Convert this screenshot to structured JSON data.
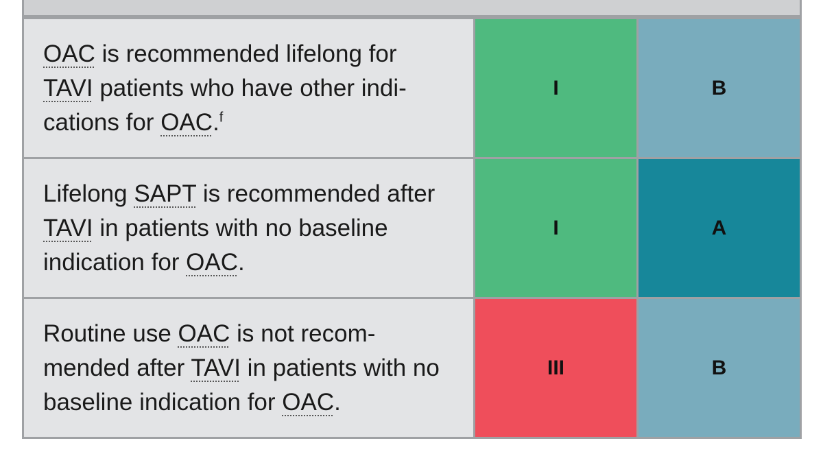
{
  "rows": [
    {
      "parts": [
        {
          "t": "OAC",
          "abbr": true
        },
        {
          "t": " is recommended lifelong for "
        },
        {
          "t": "TAVI",
          "abbr": true
        },
        {
          "t": " patients who have other indi-cations for "
        },
        {
          "t": "OAC",
          "abbr": true
        },
        {
          "t": "."
        },
        {
          "t": "f",
          "sup": true
        }
      ],
      "class_label": "I",
      "class_color": "#4fba7f",
      "level_label": "B",
      "level_color": "#79acbd"
    },
    {
      "parts": [
        {
          "t": "Lifelong "
        },
        {
          "t": "SAPT",
          "abbr": true
        },
        {
          "t": " is recommended after "
        },
        {
          "t": "TAVI",
          "abbr": true
        },
        {
          "t": " in patients with no baseline indication for "
        },
        {
          "t": "OAC",
          "abbr": true
        },
        {
          "t": "."
        }
      ],
      "class_label": "I",
      "class_color": "#4fba7f",
      "level_label": "A",
      "level_color": "#17879a"
    },
    {
      "parts": [
        {
          "t": "Routine use "
        },
        {
          "t": "OAC",
          "abbr": true
        },
        {
          "t": " is not recom-mended after "
        },
        {
          "t": "TAVI",
          "abbr": true
        },
        {
          "t": " in patients with no baseline indication for "
        },
        {
          "t": "OAC",
          "abbr": true
        },
        {
          "t": "."
        }
      ],
      "class_label": "III",
      "class_color": "#ef4e5b",
      "level_label": "B",
      "level_color": "#79acbd"
    }
  ]
}
